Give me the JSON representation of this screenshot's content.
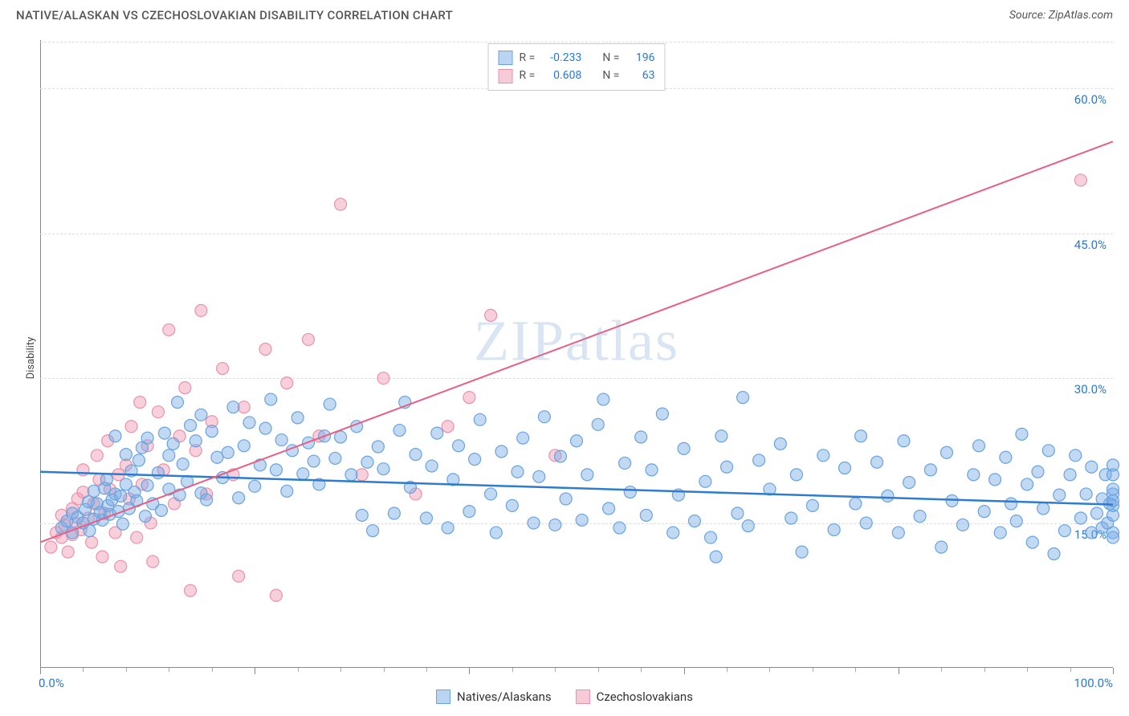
{
  "title": "NATIVE/ALASKAN VS CZECHOSLOVAKIAN DISABILITY CORRELATION CHART",
  "source": "Source: ZipAtlas.com",
  "y_axis_label": "Disability",
  "watermark": {
    "bold": "ZIP",
    "rest": "atlas"
  },
  "chart": {
    "type": "scatter",
    "xlim": [
      0,
      100
    ],
    "ylim": [
      0,
      65
    ],
    "y_ticks": [
      15.0,
      30.0,
      45.0,
      60.0
    ],
    "y_tick_labels": [
      "15.0%",
      "30.0%",
      "45.0%",
      "60.0%"
    ],
    "x_tick_labels": {
      "min": "0.0%",
      "max": "100.0%"
    },
    "x_major_ticks": [
      0,
      20,
      40,
      60,
      80,
      100
    ],
    "x_minor_tick_step": 4,
    "background_color": "#ffffff",
    "grid_color": "#dddddd",
    "axis_color": "#888888",
    "series": [
      {
        "name": "Natives/Alaskans",
        "marker_fill": "rgba(120,170,230,0.45)",
        "marker_stroke": "#6aa3dd",
        "marker_radius": 7.5,
        "line_color": "#2f7ccf",
        "line_width": 2.5,
        "trend": {
          "x1": 0,
          "y1": 20.3,
          "x2": 100,
          "y2": 16.9
        },
        "R": "-0.233",
        "N": "196",
        "swatch_fill": "rgba(120,170,230,0.5)",
        "swatch_border": "#6aa3dd",
        "points": [
          [
            2,
            14.5
          ],
          [
            2.5,
            15.2
          ],
          [
            3,
            16.0
          ],
          [
            3,
            14.0
          ],
          [
            3.5,
            15.6
          ],
          [
            4,
            15.0
          ],
          [
            4.2,
            16.4
          ],
          [
            4.5,
            17.2
          ],
          [
            4.6,
            14.2
          ],
          [
            5,
            18.3
          ],
          [
            5,
            15.4
          ],
          [
            5.3,
            17.0
          ],
          [
            5.6,
            16.1
          ],
          [
            5.8,
            15.3
          ],
          [
            6,
            18.6
          ],
          [
            6.2,
            19.5
          ],
          [
            6.3,
            16.8
          ],
          [
            6.5,
            15.9
          ],
          [
            6.7,
            17.4
          ],
          [
            7,
            18.0
          ],
          [
            7,
            24.0
          ],
          [
            7.3,
            16.2
          ],
          [
            7.5,
            17.8
          ],
          [
            7.7,
            14.9
          ],
          [
            8,
            22.1
          ],
          [
            8,
            19.0
          ],
          [
            8.3,
            16.5
          ],
          [
            8.5,
            20.4
          ],
          [
            8.8,
            18.2
          ],
          [
            9,
            17.3
          ],
          [
            9.2,
            21.5
          ],
          [
            9.5,
            22.8
          ],
          [
            9.8,
            15.7
          ],
          [
            10,
            18.9
          ],
          [
            10,
            23.8
          ],
          [
            10.5,
            17.0
          ],
          [
            11,
            20.2
          ],
          [
            11.3,
            16.3
          ],
          [
            11.6,
            24.3
          ],
          [
            12,
            18.5
          ],
          [
            12,
            22.0
          ],
          [
            12.4,
            23.2
          ],
          [
            12.8,
            27.5
          ],
          [
            13,
            17.9
          ],
          [
            13.3,
            21.1
          ],
          [
            13.7,
            19.3
          ],
          [
            14,
            25.1
          ],
          [
            14.5,
            23.5
          ],
          [
            15,
            18.1
          ],
          [
            15,
            26.2
          ],
          [
            15.5,
            17.4
          ],
          [
            16,
            24.5
          ],
          [
            16.5,
            21.8
          ],
          [
            17,
            19.7
          ],
          [
            17.5,
            22.3
          ],
          [
            18,
            27.0
          ],
          [
            18.5,
            17.6
          ],
          [
            19,
            23.0
          ],
          [
            19.5,
            25.4
          ],
          [
            20,
            18.8
          ],
          [
            20.5,
            21.0
          ],
          [
            21,
            24.8
          ],
          [
            21.5,
            27.8
          ],
          [
            22,
            20.5
          ],
          [
            22.5,
            23.6
          ],
          [
            23,
            18.3
          ],
          [
            23.5,
            22.5
          ],
          [
            24,
            25.9
          ],
          [
            24.5,
            20.1
          ],
          [
            25,
            23.3
          ],
          [
            25.5,
            21.4
          ],
          [
            26,
            19.0
          ],
          [
            26.5,
            24.0
          ],
          [
            27,
            27.3
          ],
          [
            27.5,
            21.7
          ],
          [
            28,
            23.9
          ],
          [
            29,
            20.0
          ],
          [
            29.5,
            25.0
          ],
          [
            30,
            15.8
          ],
          [
            30.5,
            21.3
          ],
          [
            31,
            14.2
          ],
          [
            31.5,
            22.9
          ],
          [
            32,
            20.6
          ],
          [
            33,
            16.0
          ],
          [
            33.5,
            24.6
          ],
          [
            34,
            27.5
          ],
          [
            34.5,
            18.7
          ],
          [
            35,
            22.1
          ],
          [
            36,
            15.5
          ],
          [
            36.5,
            20.9
          ],
          [
            37,
            24.3
          ],
          [
            38,
            14.5
          ],
          [
            38.5,
            19.5
          ],
          [
            39,
            23.0
          ],
          [
            40,
            16.2
          ],
          [
            40.5,
            21.6
          ],
          [
            41,
            25.7
          ],
          [
            42,
            18.0
          ],
          [
            42.5,
            14.0
          ],
          [
            43,
            22.4
          ],
          [
            44,
            16.8
          ],
          [
            44.5,
            20.3
          ],
          [
            45,
            23.8
          ],
          [
            46,
            15.0
          ],
          [
            46.5,
            19.8
          ],
          [
            47,
            26.0
          ],
          [
            48,
            14.8
          ],
          [
            48.5,
            21.9
          ],
          [
            49,
            17.5
          ],
          [
            50,
            23.5
          ],
          [
            50.5,
            15.3
          ],
          [
            51,
            20.0
          ],
          [
            52,
            25.2
          ],
          [
            52.5,
            27.8
          ],
          [
            53,
            16.5
          ],
          [
            54,
            14.5
          ],
          [
            54.5,
            21.2
          ],
          [
            55,
            18.2
          ],
          [
            56,
            23.9
          ],
          [
            56.5,
            15.8
          ],
          [
            57,
            20.5
          ],
          [
            58,
            26.3
          ],
          [
            59,
            14.0
          ],
          [
            59.5,
            17.9
          ],
          [
            60,
            22.7
          ],
          [
            61,
            15.2
          ],
          [
            62,
            19.3
          ],
          [
            62.5,
            13.5
          ],
          [
            63,
            11.5
          ],
          [
            63.5,
            24.0
          ],
          [
            64,
            20.8
          ],
          [
            65,
            16.0
          ],
          [
            65.5,
            28.0
          ],
          [
            66,
            14.7
          ],
          [
            67,
            21.5
          ],
          [
            68,
            18.5
          ],
          [
            69,
            23.2
          ],
          [
            70,
            15.5
          ],
          [
            70.5,
            20.0
          ],
          [
            71,
            12.0
          ],
          [
            72,
            16.8
          ],
          [
            73,
            22.0
          ],
          [
            74,
            14.3
          ],
          [
            75,
            20.7
          ],
          [
            76,
            17.0
          ],
          [
            76.5,
            24.0
          ],
          [
            77,
            15.0
          ],
          [
            78,
            21.3
          ],
          [
            79,
            17.8
          ],
          [
            80,
            14.0
          ],
          [
            80.5,
            23.5
          ],
          [
            81,
            19.2
          ],
          [
            82,
            15.7
          ],
          [
            83,
            20.5
          ],
          [
            84,
            12.5
          ],
          [
            84.5,
            22.3
          ],
          [
            85,
            17.3
          ],
          [
            86,
            14.8
          ],
          [
            87,
            20.0
          ],
          [
            87.5,
            23.0
          ],
          [
            88,
            16.2
          ],
          [
            89,
            19.5
          ],
          [
            89.5,
            14.0
          ],
          [
            90,
            21.8
          ],
          [
            90.5,
            17.0
          ],
          [
            91,
            15.2
          ],
          [
            91.5,
            24.2
          ],
          [
            92,
            19.0
          ],
          [
            92.5,
            13.0
          ],
          [
            93,
            20.3
          ],
          [
            93.5,
            16.5
          ],
          [
            94,
            22.5
          ],
          [
            94.5,
            11.8
          ],
          [
            95,
            17.9
          ],
          [
            95.5,
            14.2
          ],
          [
            96,
            20.0
          ],
          [
            96.5,
            22.0
          ],
          [
            97,
            15.5
          ],
          [
            97.5,
            18.0
          ],
          [
            98,
            14.0
          ],
          [
            98,
            20.8
          ],
          [
            98.5,
            16.0
          ],
          [
            99,
            17.5
          ],
          [
            99,
            14.5
          ],
          [
            99.3,
            20.0
          ],
          [
            99.5,
            15.0
          ],
          [
            99.7,
            17.0
          ],
          [
            100,
            18.0
          ],
          [
            100,
            14.0
          ],
          [
            100,
            20.0
          ],
          [
            100,
            15.8
          ],
          [
            100,
            16.8
          ],
          [
            100,
            21.0
          ],
          [
            100,
            17.3
          ],
          [
            100,
            13.5
          ],
          [
            100,
            18.5
          ]
        ]
      },
      {
        "name": "Czechoslovakians",
        "marker_fill": "rgba(240,150,175,0.45)",
        "marker_stroke": "#e892ab",
        "marker_radius": 7.5,
        "line_color": "#e85f86",
        "line_width": 2,
        "trend": {
          "x1": 0,
          "y1": 13.0,
          "x2": 100,
          "y2": 54.5
        },
        "R": "0.608",
        "N": "63",
        "swatch_fill": "rgba(240,150,175,0.5)",
        "swatch_border": "#e892ab",
        "points": [
          [
            1,
            12.5
          ],
          [
            1.5,
            14.0
          ],
          [
            2,
            13.5
          ],
          [
            2,
            15.8
          ],
          [
            2.3,
            14.8
          ],
          [
            2.6,
            12.0
          ],
          [
            3,
            16.5
          ],
          [
            3,
            13.8
          ],
          [
            3.3,
            15.0
          ],
          [
            3.5,
            17.5
          ],
          [
            3.8,
            14.3
          ],
          [
            4,
            18.2
          ],
          [
            4,
            20.5
          ],
          [
            4.5,
            15.5
          ],
          [
            4.8,
            13.0
          ],
          [
            5,
            17.0
          ],
          [
            5.3,
            22.0
          ],
          [
            5.5,
            19.5
          ],
          [
            5.8,
            11.5
          ],
          [
            6,
            16.0
          ],
          [
            6.3,
            23.5
          ],
          [
            6.5,
            18.5
          ],
          [
            7,
            14.0
          ],
          [
            7.3,
            20.0
          ],
          [
            7.5,
            10.5
          ],
          [
            8,
            21.0
          ],
          [
            8.3,
            17.5
          ],
          [
            8.5,
            25.0
          ],
          [
            9,
            13.5
          ],
          [
            9.3,
            27.5
          ],
          [
            9.5,
            19.0
          ],
          [
            10,
            23.0
          ],
          [
            10.3,
            15.0
          ],
          [
            10.5,
            11.0
          ],
          [
            11,
            26.5
          ],
          [
            11.5,
            20.5
          ],
          [
            12,
            35.0
          ],
          [
            12.5,
            17.0
          ],
          [
            13,
            24.0
          ],
          [
            13.5,
            29.0
          ],
          [
            14,
            8.0
          ],
          [
            14.5,
            22.5
          ],
          [
            15,
            37.0
          ],
          [
            15.5,
            18.0
          ],
          [
            16,
            25.5
          ],
          [
            17,
            31.0
          ],
          [
            18,
            20.0
          ],
          [
            18.5,
            9.5
          ],
          [
            19,
            27.0
          ],
          [
            21,
            33.0
          ],
          [
            22,
            7.5
          ],
          [
            23,
            29.5
          ],
          [
            25,
            34.0
          ],
          [
            26,
            24.0
          ],
          [
            28,
            48.0
          ],
          [
            30,
            20.0
          ],
          [
            32,
            30.0
          ],
          [
            35,
            18.0
          ],
          [
            38,
            25.0
          ],
          [
            40,
            28.0
          ],
          [
            42,
            36.5
          ],
          [
            48,
            22.0
          ],
          [
            97,
            50.5
          ]
        ]
      }
    ]
  },
  "legend_top_labels": {
    "R": "R =",
    "N": "N ="
  },
  "legend_bottom": [
    {
      "label": "Natives/Alaskans",
      "series_idx": 0
    },
    {
      "label": "Czechoslovakians",
      "series_idx": 1
    }
  ]
}
